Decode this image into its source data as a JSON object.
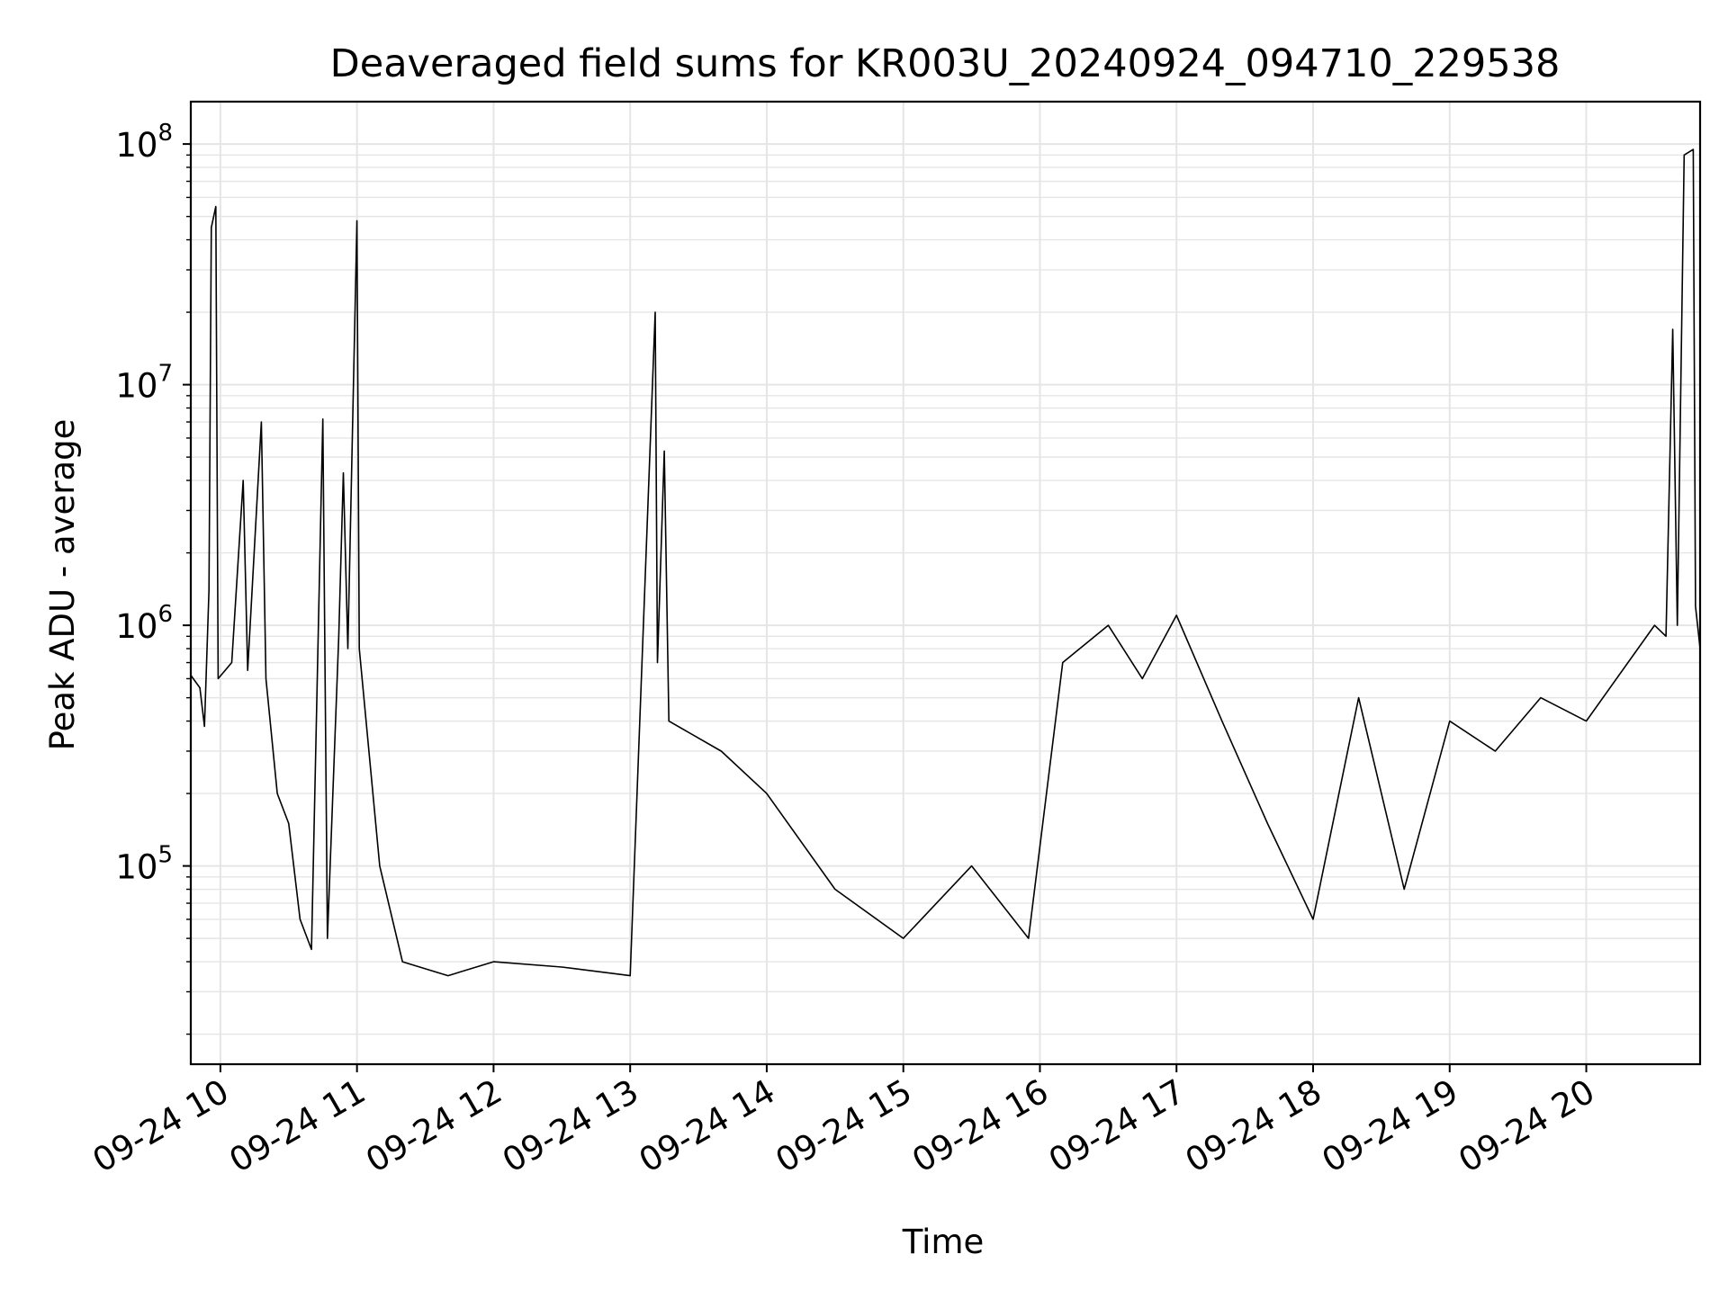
{
  "chart_data": {
    "type": "line",
    "title": "Deaveraged field sums for KR003U_20240924_094710_229538",
    "xlabel": "Time",
    "ylabel": "Peak ADU - average",
    "yscale": "log",
    "xlim": [
      "2024-09-24 09:47",
      "2024-09-24 20:50"
    ],
    "ylim": [
      15000,
      150000000
    ],
    "grid": true,
    "line_color": "#000000",
    "x_ticks": [
      {
        "time": "2024-09-24 10:00",
        "label": "09-24 10"
      },
      {
        "time": "2024-09-24 11:00",
        "label": "09-24 11"
      },
      {
        "time": "2024-09-24 12:00",
        "label": "09-24 12"
      },
      {
        "time": "2024-09-24 13:00",
        "label": "09-24 13"
      },
      {
        "time": "2024-09-24 14:00",
        "label": "09-24 14"
      },
      {
        "time": "2024-09-24 15:00",
        "label": "09-24 15"
      },
      {
        "time": "2024-09-24 16:00",
        "label": "09-24 16"
      },
      {
        "time": "2024-09-24 17:00",
        "label": "09-24 17"
      },
      {
        "time": "2024-09-24 18:00",
        "label": "09-24 18"
      },
      {
        "time": "2024-09-24 19:00",
        "label": "09-24 19"
      },
      {
        "time": "2024-09-24 20:00",
        "label": "09-24 20"
      }
    ],
    "y_ticks": [
      {
        "value": 100000,
        "base": "10",
        "exp": "5"
      },
      {
        "value": 1000000,
        "base": "10",
        "exp": "6"
      },
      {
        "value": 10000000,
        "base": "10",
        "exp": "7"
      },
      {
        "value": 100000000,
        "base": "10",
        "exp": "8"
      }
    ],
    "series": [
      {
        "values": [
          [
            "2024-09-24 09:47",
            620000
          ],
          [
            "2024-09-24 09:51",
            550000
          ],
          [
            "2024-09-24 09:53",
            380000
          ],
          [
            "2024-09-24 09:55",
            1400000
          ],
          [
            "2024-09-24 09:56",
            45000000
          ],
          [
            "2024-09-24 09:58",
            55000000
          ],
          [
            "2024-09-24 09:59",
            600000
          ],
          [
            "2024-09-24 10:05",
            700000
          ],
          [
            "2024-09-24 10:10",
            4000000
          ],
          [
            "2024-09-24 10:12",
            650000
          ],
          [
            "2024-09-24 10:18",
            7000000
          ],
          [
            "2024-09-24 10:20",
            600000
          ],
          [
            "2024-09-24 10:25",
            200000
          ],
          [
            "2024-09-24 10:30",
            150000
          ],
          [
            "2024-09-24 10:35",
            60000
          ],
          [
            "2024-09-24 10:40",
            45000
          ],
          [
            "2024-09-24 10:45",
            7200000
          ],
          [
            "2024-09-24 10:47",
            50000
          ],
          [
            "2024-09-24 10:52",
            900000
          ],
          [
            "2024-09-24 10:54",
            4300000
          ],
          [
            "2024-09-24 10:56",
            800000
          ],
          [
            "2024-09-24 11:00",
            48000000
          ],
          [
            "2024-09-24 11:01",
            800000
          ],
          [
            "2024-09-24 11:10",
            100000
          ],
          [
            "2024-09-24 11:20",
            40000
          ],
          [
            "2024-09-24 11:40",
            35000
          ],
          [
            "2024-09-24 12:00",
            40000
          ],
          [
            "2024-09-24 12:30",
            38000
          ],
          [
            "2024-09-24 13:00",
            35000
          ],
          [
            "2024-09-24 13:11",
            20000000
          ],
          [
            "2024-09-24 13:12",
            700000
          ],
          [
            "2024-09-24 13:15",
            5300000
          ],
          [
            "2024-09-24 13:17",
            400000
          ],
          [
            "2024-09-24 13:40",
            300000
          ],
          [
            "2024-09-24 14:00",
            200000
          ],
          [
            "2024-09-24 14:30",
            80000
          ],
          [
            "2024-09-24 15:00",
            50000
          ],
          [
            "2024-09-24 15:30",
            100000
          ],
          [
            "2024-09-24 15:55",
            50000
          ],
          [
            "2024-09-24 16:10",
            700000
          ],
          [
            "2024-09-24 16:30",
            1000000
          ],
          [
            "2024-09-24 16:45",
            600000
          ],
          [
            "2024-09-24 17:00",
            1100000
          ],
          [
            "2024-09-24 17:20",
            400000
          ],
          [
            "2024-09-24 17:40",
            150000
          ],
          [
            "2024-09-24 18:00",
            60000
          ],
          [
            "2024-09-24 18:20",
            500000
          ],
          [
            "2024-09-24 18:40",
            80000
          ],
          [
            "2024-09-24 19:00",
            400000
          ],
          [
            "2024-09-24 19:20",
            300000
          ],
          [
            "2024-09-24 19:40",
            500000
          ],
          [
            "2024-09-24 20:00",
            400000
          ],
          [
            "2024-09-24 20:30",
            1000000
          ],
          [
            "2024-09-24 20:35",
            900000
          ],
          [
            "2024-09-24 20:38",
            17000000
          ],
          [
            "2024-09-24 20:40",
            1000000
          ],
          [
            "2024-09-24 20:43",
            90000000
          ],
          [
            "2024-09-24 20:47",
            95000000
          ],
          [
            "2024-09-24 20:48",
            1200000
          ],
          [
            "2024-09-24 20:50",
            800000
          ]
        ]
      }
    ]
  }
}
